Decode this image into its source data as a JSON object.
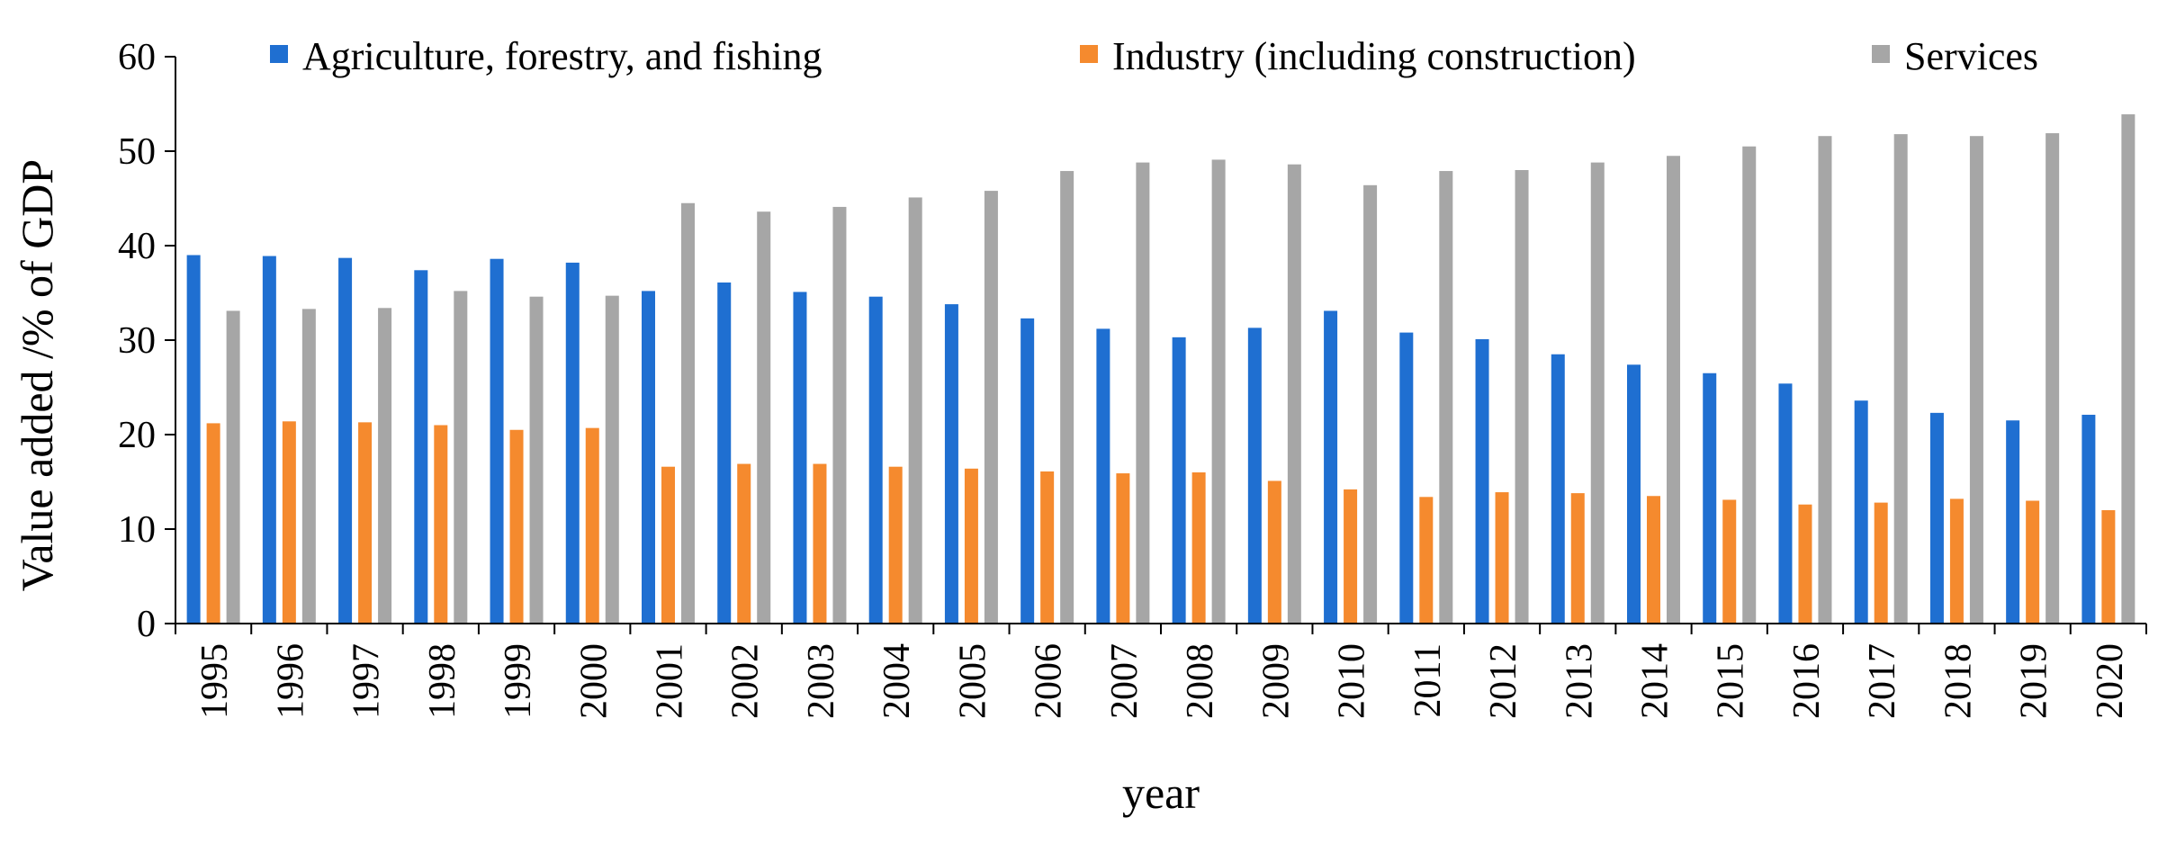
{
  "chart_data": {
    "type": "bar",
    "title": "",
    "xlabel": "year",
    "ylabel": "Value added /% of GDP",
    "ylim": [
      0,
      60
    ],
    "yticks": [
      "0",
      "10",
      "20",
      "30",
      "40",
      "50",
      "60"
    ],
    "grid": false,
    "legend_position": "top",
    "categories": [
      "1995",
      "1996",
      "1997",
      "1998",
      "1999",
      "2000",
      "2001",
      "2002",
      "2003",
      "2004",
      "2005",
      "2006",
      "2007",
      "2008",
      "2009",
      "2010",
      "2011",
      "2012",
      "2013",
      "2014",
      "2015",
      "2016",
      "2017",
      "2018",
      "2019",
      "2020"
    ],
    "series": [
      {
        "name": "Agriculture, forestry, and fishing",
        "color": "#1f6fd1",
        "values": [
          39.0,
          38.9,
          38.7,
          37.4,
          38.6,
          38.2,
          35.2,
          36.1,
          35.1,
          34.6,
          33.8,
          32.3,
          31.2,
          30.3,
          31.3,
          33.1,
          30.8,
          30.1,
          28.5,
          27.4,
          26.5,
          25.4,
          23.6,
          22.3,
          21.5,
          22.1
        ]
      },
      {
        "name": "Industry (including construction)",
        "color": "#f58a2e",
        "values": [
          21.2,
          21.4,
          21.3,
          21.0,
          20.5,
          20.7,
          16.6,
          16.9,
          16.9,
          16.6,
          16.4,
          16.1,
          15.9,
          16.0,
          15.1,
          14.2,
          13.4,
          13.9,
          13.8,
          13.5,
          13.1,
          12.6,
          12.8,
          13.2,
          13.0,
          12.0
        ]
      },
      {
        "name": "Services",
        "color": "#a6a6a6",
        "values": [
          33.1,
          33.3,
          33.4,
          35.2,
          34.6,
          34.7,
          44.5,
          43.6,
          44.1,
          45.1,
          45.8,
          47.9,
          48.8,
          49.1,
          48.6,
          46.4,
          47.9,
          48.0,
          48.8,
          49.5,
          50.5,
          51.6,
          51.8,
          51.6,
          51.9,
          53.9
        ]
      }
    ]
  }
}
